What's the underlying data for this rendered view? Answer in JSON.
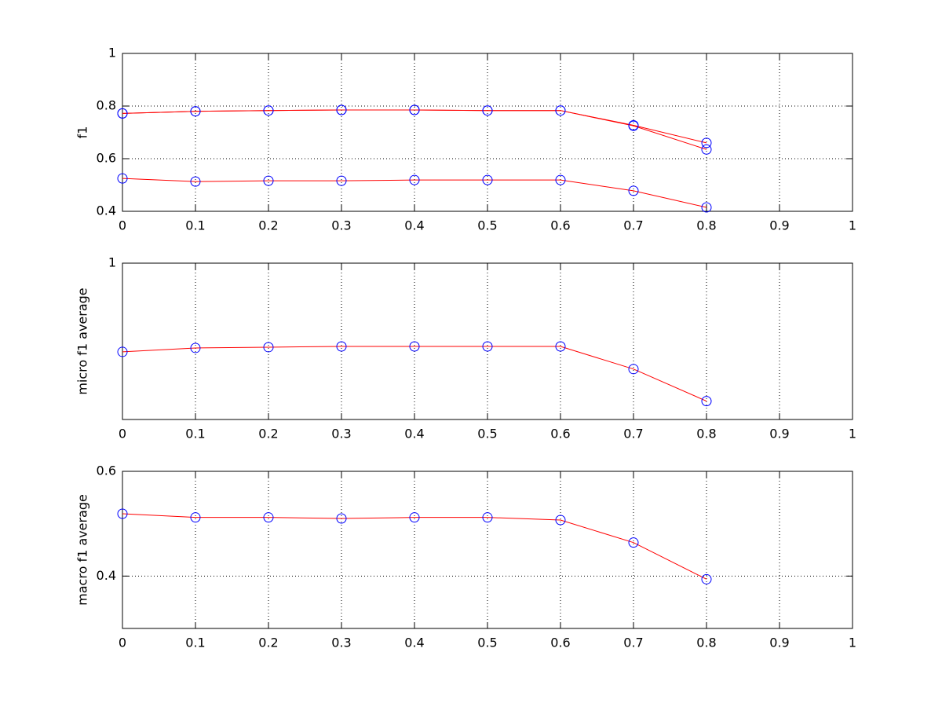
{
  "chart_data": [
    {
      "type": "line",
      "ylabel": "f1",
      "x": [
        0,
        0.1,
        0.2,
        0.3,
        0.4,
        0.5,
        0.6,
        0.7,
        0.8
      ],
      "series": [
        {
          "color": "#ff0000",
          "marker_color": "#0000ff",
          "values": [
            0.772,
            0.78,
            0.783,
            0.785,
            0.785,
            0.783,
            0.783,
            0.727,
            0.66
          ]
        },
        {
          "color": "#ff0000",
          "marker_color": "#0000ff",
          "values": [
            0.772,
            0.78,
            0.783,
            0.785,
            0.785,
            0.783,
            0.783,
            0.725,
            0.635
          ]
        },
        {
          "color": "#ff0000",
          "marker_color": "#0000ff",
          "values": [
            0.525,
            0.513,
            0.516,
            0.516,
            0.519,
            0.519,
            0.519,
            0.478,
            0.415
          ]
        }
      ],
      "xlim": [
        0,
        1
      ],
      "ylim": [
        0.4,
        1
      ],
      "xticks": [
        0,
        0.1,
        0.2,
        0.3,
        0.4,
        0.5,
        0.6,
        0.7,
        0.8,
        0.9,
        1
      ],
      "yticks": [
        0.4,
        0.6,
        0.8,
        1
      ],
      "grid": true
    },
    {
      "type": "line",
      "ylabel": "micro f1 average",
      "x": [
        0,
        0.1,
        0.2,
        0.3,
        0.4,
        0.5,
        0.6,
        0.7,
        0.8
      ],
      "series": [
        {
          "color": "#ff0000",
          "marker_color": "#0000ff",
          "values": [
            0.773,
            0.783,
            0.785,
            0.787,
            0.787,
            0.787,
            0.787,
            0.729,
            0.647
          ]
        }
      ],
      "xlim": [
        0,
        1
      ],
      "ylim": [
        0.6,
        1
      ],
      "xticks": [
        0,
        0.1,
        0.2,
        0.3,
        0.4,
        0.5,
        0.6,
        0.7,
        0.8,
        0.9,
        1
      ],
      "yticks": [
        1
      ],
      "grid": true
    },
    {
      "type": "line",
      "ylabel": "macro f1 average",
      "x": [
        0,
        0.1,
        0.2,
        0.3,
        0.4,
        0.5,
        0.6,
        0.7,
        0.8
      ],
      "series": [
        {
          "color": "#ff0000",
          "marker_color": "#0000ff",
          "values": [
            0.519,
            0.512,
            0.512,
            0.51,
            0.512,
            0.512,
            0.507,
            0.464,
            0.394
          ]
        }
      ],
      "xlim": [
        0,
        1
      ],
      "ylim": [
        0.3,
        0.6
      ],
      "xticks": [
        0,
        0.1,
        0.2,
        0.3,
        0.4,
        0.5,
        0.6,
        0.7,
        0.8,
        0.9,
        1
      ],
      "yticks": [
        0.4,
        0.6
      ],
      "grid": true
    }
  ]
}
